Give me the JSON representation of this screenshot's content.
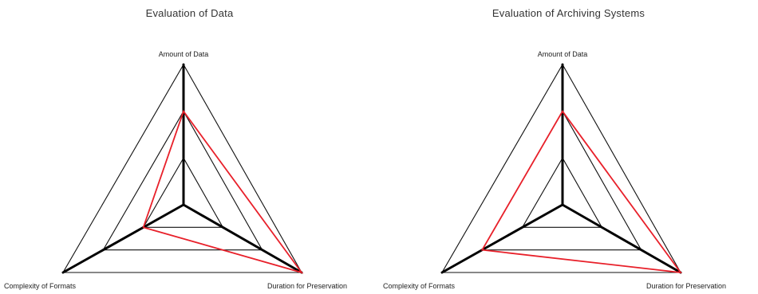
{
  "chart_data": [
    {
      "type": "radar",
      "title": "Evaluation of Data",
      "axes": [
        "Amount of Data",
        "Duration for Preservation",
        "Complexity of Formats"
      ],
      "levels": [
        1,
        2,
        3
      ],
      "range": [
        0,
        3
      ],
      "series": [
        {
          "values": [
            2,
            3,
            1
          ],
          "color": "#e8202a"
        }
      ]
    },
    {
      "type": "radar",
      "title": "Evaluation of Archiving Systems",
      "axes": [
        "Amount of Data",
        "Duration for Preservation",
        "Complexity of Formats"
      ],
      "levels": [
        1,
        2,
        3
      ],
      "range": [
        0,
        3
      ],
      "series": [
        {
          "values": [
            2,
            3,
            2
          ],
          "color": "#e8202a"
        }
      ]
    }
  ]
}
